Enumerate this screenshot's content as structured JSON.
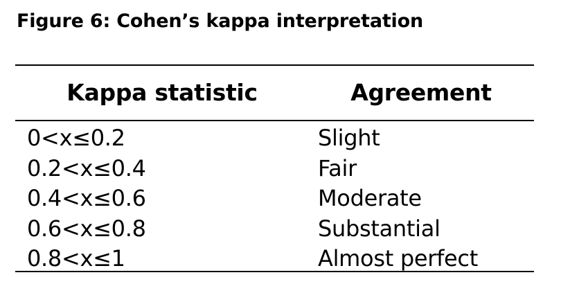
{
  "caption": "Figure 6: Cohen’s kappa interpretation",
  "table": {
    "headers": [
      "Kappa statistic",
      "Agreement"
    ],
    "rows": [
      [
        "0<x≤0.2",
        "Slight"
      ],
      [
        "0.2<x≤0.4",
        "Fair"
      ],
      [
        "0.4<x≤0.6",
        "Moderate"
      ],
      [
        "0.6<x≤0.8",
        "Substantial"
      ],
      [
        "0.8<x≤1",
        "Almost perfect"
      ]
    ]
  }
}
